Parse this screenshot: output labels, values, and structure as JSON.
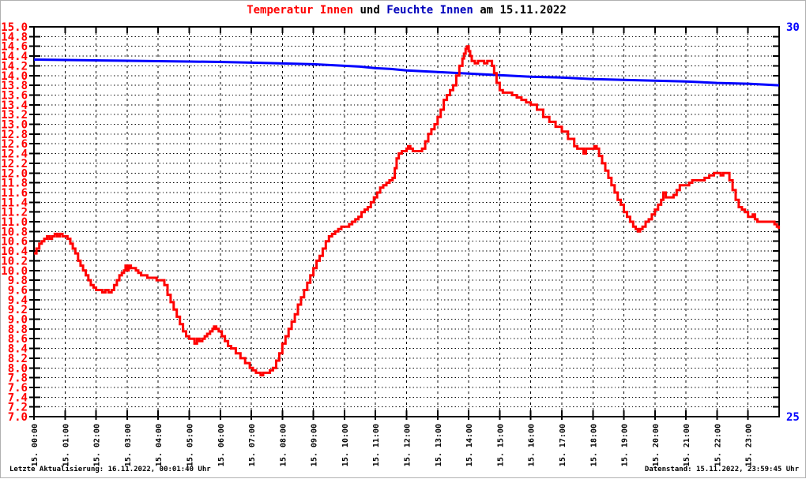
{
  "chart_data": {
    "type": "line",
    "title": "Temperatur Innen und Feuchte Innen am 15.11.2022",
    "title_segments": {
      "temperature": "Temperatur Innen",
      "connector": " und ",
      "humidity": "Feuchte Innen",
      "date_suffix": " am 15.11.2022"
    },
    "footer_left": "Letzte Aktualisierung: 16.11.2022, 00:01:40 Uhr",
    "footer_right": "Datenstand: 15.11.2022, 23:59:45 Uhr",
    "grid": "dotted",
    "x_axis": {
      "range_hours": [
        0,
        24
      ],
      "labels": [
        "15. 00:00",
        "15. 01:00",
        "15. 02:00",
        "15. 03:00",
        "15. 04:00",
        "15. 05:00",
        "15. 06:00",
        "15. 07:00",
        "15. 08:00",
        "15. 09:00",
        "15. 10:00",
        "15. 11:00",
        "15. 12:00",
        "15. 13:00",
        "15. 14:00",
        "15. 15:00",
        "15. 16:00",
        "15. 17:00",
        "15. 18:00",
        "15. 19:00",
        "15. 20:00",
        "15. 21:00",
        "15. 22:00",
        "15. 23:00"
      ]
    },
    "y_axis_left": {
      "min": 7.0,
      "max": 15.0,
      "step": 0.2,
      "color": "#ff0000",
      "tick_labels": [
        "15.0",
        "14.8",
        "14.6",
        "14.4",
        "14.2",
        "14.0",
        "13.8",
        "13.6",
        "13.4",
        "13.2",
        "13.0",
        "12.8",
        "12.6",
        "12.4",
        "12.2",
        "12.0",
        "11.8",
        "11.6",
        "11.4",
        "11.2",
        "11.0",
        "10.8",
        "10.6",
        "10.4",
        "10.2",
        "10.0",
        "9.8",
        "9.6",
        "9.4",
        "9.2",
        "9.0",
        "8.8",
        "8.6",
        "8.4",
        "8.2",
        "8.0",
        "7.8",
        "7.6",
        "7.4",
        "7.2",
        "7.0"
      ]
    },
    "y_axis_right": {
      "min": 25,
      "max": 30,
      "color": "#0000ff",
      "tick_labels": [
        "30",
        "25"
      ]
    },
    "series": [
      {
        "name": "Temperatur Innen",
        "color": "#ff0000",
        "axis": "left",
        "style": "step",
        "points": [
          [
            0,
            10.35
          ],
          [
            0.08,
            10.45
          ],
          [
            0.17,
            10.55
          ],
          [
            0.25,
            10.6
          ],
          [
            0.33,
            10.65
          ],
          [
            0.42,
            10.7
          ],
          [
            0.5,
            10.65
          ],
          [
            0.58,
            10.7
          ],
          [
            0.67,
            10.75
          ],
          [
            0.75,
            10.7
          ],
          [
            0.83,
            10.75
          ],
          [
            0.92,
            10.7
          ],
          [
            1.0,
            10.7
          ],
          [
            1.08,
            10.65
          ],
          [
            1.17,
            10.55
          ],
          [
            1.25,
            10.45
          ],
          [
            1.33,
            10.35
          ],
          [
            1.42,
            10.2
          ],
          [
            1.5,
            10.1
          ],
          [
            1.58,
            10.0
          ],
          [
            1.67,
            9.9
          ],
          [
            1.75,
            9.8
          ],
          [
            1.83,
            9.7
          ],
          [
            1.92,
            9.65
          ],
          [
            2.0,
            9.6
          ],
          [
            2.1,
            9.6
          ],
          [
            2.2,
            9.55
          ],
          [
            2.3,
            9.6
          ],
          [
            2.4,
            9.55
          ],
          [
            2.5,
            9.6
          ],
          [
            2.58,
            9.7
          ],
          [
            2.67,
            9.8
          ],
          [
            2.75,
            9.9
          ],
          [
            2.83,
            9.95
          ],
          [
            2.9,
            10.0
          ],
          [
            2.95,
            10.1
          ],
          [
            3.0,
            10.0
          ],
          [
            3.05,
            10.1
          ],
          [
            3.12,
            10.05
          ],
          [
            3.2,
            10.05
          ],
          [
            3.28,
            10.0
          ],
          [
            3.36,
            9.95
          ],
          [
            3.45,
            9.9
          ],
          [
            3.55,
            9.9
          ],
          [
            3.65,
            9.85
          ],
          [
            3.8,
            9.85
          ],
          [
            3.95,
            9.8
          ],
          [
            4.1,
            9.8
          ],
          [
            4.2,
            9.7
          ],
          [
            4.3,
            9.5
          ],
          [
            4.4,
            9.35
          ],
          [
            4.5,
            9.2
          ],
          [
            4.6,
            9.05
          ],
          [
            4.7,
            8.9
          ],
          [
            4.8,
            8.75
          ],
          [
            4.9,
            8.65
          ],
          [
            5.0,
            8.6
          ],
          [
            5.1,
            8.6
          ],
          [
            5.17,
            8.5
          ],
          [
            5.25,
            8.6
          ],
          [
            5.33,
            8.55
          ],
          [
            5.42,
            8.6
          ],
          [
            5.5,
            8.65
          ],
          [
            5.58,
            8.7
          ],
          [
            5.67,
            8.75
          ],
          [
            5.75,
            8.8
          ],
          [
            5.8,
            8.85
          ],
          [
            5.87,
            8.8
          ],
          [
            5.95,
            8.75
          ],
          [
            6.05,
            8.65
          ],
          [
            6.15,
            8.55
          ],
          [
            6.25,
            8.45
          ],
          [
            6.35,
            8.4
          ],
          [
            6.5,
            8.3
          ],
          [
            6.65,
            8.2
          ],
          [
            6.8,
            8.1
          ],
          [
            6.95,
            8.0
          ],
          [
            7.05,
            7.95
          ],
          [
            7.15,
            7.9
          ],
          [
            7.25,
            7.9
          ],
          [
            7.3,
            7.85
          ],
          [
            7.38,
            7.9
          ],
          [
            7.5,
            7.9
          ],
          [
            7.6,
            7.95
          ],
          [
            7.7,
            8.0
          ],
          [
            7.8,
            8.15
          ],
          [
            7.9,
            8.3
          ],
          [
            8.0,
            8.5
          ],
          [
            8.1,
            8.65
          ],
          [
            8.2,
            8.8
          ],
          [
            8.3,
            8.95
          ],
          [
            8.4,
            9.1
          ],
          [
            8.5,
            9.3
          ],
          [
            8.6,
            9.45
          ],
          [
            8.7,
            9.6
          ],
          [
            8.8,
            9.75
          ],
          [
            8.9,
            9.9
          ],
          [
            9.0,
            10.05
          ],
          [
            9.1,
            10.2
          ],
          [
            9.2,
            10.3
          ],
          [
            9.3,
            10.45
          ],
          [
            9.4,
            10.6
          ],
          [
            9.5,
            10.7
          ],
          [
            9.6,
            10.75
          ],
          [
            9.7,
            10.8
          ],
          [
            9.8,
            10.85
          ],
          [
            9.9,
            10.9
          ],
          [
            10.05,
            10.9
          ],
          [
            10.15,
            10.95
          ],
          [
            10.25,
            11.0
          ],
          [
            10.35,
            11.05
          ],
          [
            10.45,
            11.1
          ],
          [
            10.55,
            11.2
          ],
          [
            10.65,
            11.25
          ],
          [
            10.75,
            11.3
          ],
          [
            10.85,
            11.4
          ],
          [
            10.95,
            11.5
          ],
          [
            11.05,
            11.6
          ],
          [
            11.15,
            11.7
          ],
          [
            11.25,
            11.75
          ],
          [
            11.35,
            11.8
          ],
          [
            11.45,
            11.85
          ],
          [
            11.55,
            11.9
          ],
          [
            11.62,
            12.1
          ],
          [
            11.68,
            12.3
          ],
          [
            11.75,
            12.4
          ],
          [
            11.85,
            12.45
          ],
          [
            12.0,
            12.5
          ],
          [
            12.05,
            12.55
          ],
          [
            12.12,
            12.5
          ],
          [
            12.2,
            12.45
          ],
          [
            12.35,
            12.45
          ],
          [
            12.5,
            12.5
          ],
          [
            12.6,
            12.65
          ],
          [
            12.7,
            12.8
          ],
          [
            12.8,
            12.9
          ],
          [
            12.9,
            13.0
          ],
          [
            13.0,
            13.15
          ],
          [
            13.1,
            13.3
          ],
          [
            13.2,
            13.5
          ],
          [
            13.3,
            13.6
          ],
          [
            13.4,
            13.7
          ],
          [
            13.5,
            13.8
          ],
          [
            13.6,
            14.0
          ],
          [
            13.7,
            14.2
          ],
          [
            13.8,
            14.35
          ],
          [
            13.85,
            14.45
          ],
          [
            13.9,
            14.55
          ],
          [
            13.95,
            14.6
          ],
          [
            14.0,
            14.5
          ],
          [
            14.05,
            14.4
          ],
          [
            14.1,
            14.3
          ],
          [
            14.2,
            14.25
          ],
          [
            14.3,
            14.3
          ],
          [
            14.42,
            14.3
          ],
          [
            14.5,
            14.25
          ],
          [
            14.6,
            14.3
          ],
          [
            14.7,
            14.3
          ],
          [
            14.75,
            14.2
          ],
          [
            14.82,
            14.05
          ],
          [
            14.9,
            13.85
          ],
          [
            15.0,
            13.7
          ],
          [
            15.1,
            13.65
          ],
          [
            15.25,
            13.65
          ],
          [
            15.4,
            13.6
          ],
          [
            15.55,
            13.55
          ],
          [
            15.7,
            13.5
          ],
          [
            15.85,
            13.45
          ],
          [
            16.0,
            13.4
          ],
          [
            16.2,
            13.3
          ],
          [
            16.4,
            13.15
          ],
          [
            16.6,
            13.05
          ],
          [
            16.8,
            12.95
          ],
          [
            17.0,
            12.85
          ],
          [
            17.2,
            12.7
          ],
          [
            17.4,
            12.55
          ],
          [
            17.5,
            12.5
          ],
          [
            17.62,
            12.5
          ],
          [
            17.7,
            12.4
          ],
          [
            17.78,
            12.5
          ],
          [
            17.95,
            12.5
          ],
          [
            18.05,
            12.55
          ],
          [
            18.12,
            12.5
          ],
          [
            18.2,
            12.35
          ],
          [
            18.3,
            12.2
          ],
          [
            18.4,
            12.05
          ],
          [
            18.5,
            11.9
          ],
          [
            18.6,
            11.75
          ],
          [
            18.7,
            11.6
          ],
          [
            18.8,
            11.45
          ],
          [
            18.9,
            11.35
          ],
          [
            19.0,
            11.2
          ],
          [
            19.1,
            11.1
          ],
          [
            19.2,
            11.0
          ],
          [
            19.3,
            10.9
          ],
          [
            19.38,
            10.85
          ],
          [
            19.45,
            10.8
          ],
          [
            19.52,
            10.85
          ],
          [
            19.6,
            10.9
          ],
          [
            19.7,
            11.0
          ],
          [
            19.8,
            11.05
          ],
          [
            19.9,
            11.15
          ],
          [
            20.0,
            11.25
          ],
          [
            20.1,
            11.35
          ],
          [
            20.2,
            11.45
          ],
          [
            20.27,
            11.6
          ],
          [
            20.35,
            11.5
          ],
          [
            20.5,
            11.5
          ],
          [
            20.6,
            11.55
          ],
          [
            20.7,
            11.65
          ],
          [
            20.8,
            11.75
          ],
          [
            21.0,
            11.75
          ],
          [
            21.1,
            11.8
          ],
          [
            21.2,
            11.85
          ],
          [
            21.45,
            11.85
          ],
          [
            21.6,
            11.9
          ],
          [
            21.75,
            11.95
          ],
          [
            21.9,
            12.0
          ],
          [
            22.05,
            12.0
          ],
          [
            22.12,
            11.95
          ],
          [
            22.2,
            12.0
          ],
          [
            22.32,
            12.0
          ],
          [
            22.4,
            11.85
          ],
          [
            22.5,
            11.65
          ],
          [
            22.6,
            11.45
          ],
          [
            22.7,
            11.3
          ],
          [
            22.8,
            11.25
          ],
          [
            22.9,
            11.2
          ],
          [
            23.0,
            11.1
          ],
          [
            23.1,
            11.1
          ],
          [
            23.15,
            11.15
          ],
          [
            23.22,
            11.05
          ],
          [
            23.3,
            11.0
          ],
          [
            23.55,
            11.0
          ],
          [
            23.75,
            11.0
          ],
          [
            23.85,
            10.95
          ],
          [
            23.93,
            10.9
          ],
          [
            23.99,
            10.85
          ]
        ]
      },
      {
        "name": "Feuchte Innen",
        "color": "#0000ff",
        "axis": "right",
        "style": "linear",
        "points": [
          [
            0,
            29.58
          ],
          [
            1,
            29.575
          ],
          [
            2,
            29.57
          ],
          [
            3,
            29.565
          ],
          [
            4,
            29.56
          ],
          [
            5,
            29.555
          ],
          [
            6,
            29.55
          ],
          [
            7,
            29.54
          ],
          [
            8,
            29.53
          ],
          [
            9,
            29.52
          ],
          [
            10,
            29.5
          ],
          [
            10.5,
            29.49
          ],
          [
            11,
            29.47
          ],
          [
            11.5,
            29.46
          ],
          [
            12,
            29.44
          ],
          [
            12.5,
            29.43
          ],
          [
            13,
            29.42
          ],
          [
            13.5,
            29.41
          ],
          [
            14,
            29.4
          ],
          [
            14.5,
            29.39
          ],
          [
            15,
            29.38
          ],
          [
            15.5,
            29.37
          ],
          [
            16,
            29.36
          ],
          [
            17,
            29.35
          ],
          [
            17.5,
            29.34
          ],
          [
            18,
            29.33
          ],
          [
            19,
            29.32
          ],
          [
            20,
            29.31
          ],
          [
            21,
            29.3
          ],
          [
            22,
            29.28
          ],
          [
            23,
            29.27
          ],
          [
            23.5,
            29.26
          ],
          [
            24,
            29.25
          ]
        ]
      }
    ]
  }
}
